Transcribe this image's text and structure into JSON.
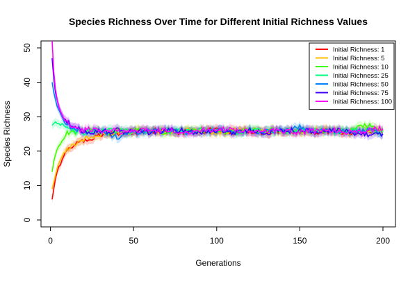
{
  "chart_data": {
    "type": "line",
    "title": "Species Richness Over Time for Different Initial Richness Values",
    "xlabel": "Generations",
    "ylabel": "Species Richness",
    "xlim": [
      1,
      200
    ],
    "ylim": [
      0,
      50
    ],
    "xticks": [
      0,
      50,
      100,
      150,
      200
    ],
    "yticks": [
      0,
      10,
      20,
      30,
      40,
      50
    ],
    "grid": false,
    "legend": "top-right",
    "confidence_bands": true,
    "x": [
      1,
      2,
      3,
      4,
      5,
      6,
      7,
      8,
      9,
      10,
      12,
      14,
      16,
      18,
      20,
      25,
      30,
      35,
      40,
      45,
      50,
      60,
      70,
      80,
      90,
      100,
      110,
      120,
      130,
      140,
      150,
      160,
      170,
      180,
      190,
      200
    ],
    "series": [
      {
        "name": "Initial Richness: 1",
        "color": "#ff0000",
        "values": [
          6,
          9,
          12,
          14,
          15.5,
          16,
          17.5,
          18.5,
          19,
          20,
          21,
          21.5,
          22,
          22.5,
          23,
          23.5,
          24.5,
          25,
          25,
          25.5,
          25.5,
          26,
          26,
          25.5,
          26,
          26,
          25.5,
          26,
          25.5,
          26,
          26,
          25.5,
          26,
          25.5,
          26,
          26
        ]
      },
      {
        "name": "Initial Richness: 5",
        "color": "#ffbf00",
        "values": [
          9,
          11,
          13,
          15,
          16.5,
          17.5,
          18.5,
          19.5,
          20,
          20.5,
          21.5,
          22,
          22.5,
          23,
          23.5,
          24,
          24.5,
          25,
          25.5,
          25.5,
          26,
          26,
          25.5,
          26,
          26,
          25.5,
          26,
          26,
          25.5,
          26,
          25.5,
          26,
          26,
          25.5,
          26,
          26
        ]
      },
      {
        "name": "Initial Richness: 10",
        "color": "#40ff00",
        "values": [
          14,
          17,
          19,
          20.5,
          21.5,
          22,
          23,
          23.5,
          24.5,
          25,
          25.5,
          25,
          25.5,
          26,
          25.5,
          26,
          26,
          25.5,
          26,
          25.5,
          26,
          26,
          25.5,
          26,
          26,
          26,
          25.5,
          26,
          26,
          26,
          25.5,
          26,
          26,
          26,
          27.5,
          26
        ]
      },
      {
        "name": "Initial Richness: 25",
        "color": "#00ff80",
        "values": [
          27.5,
          28,
          28.5,
          28,
          28,
          27.5,
          28,
          27.5,
          27,
          26.5,
          26,
          26,
          25.5,
          26,
          25.5,
          26,
          25.5,
          26,
          25.5,
          26,
          25.5,
          26,
          26,
          25.5,
          26,
          26,
          25.5,
          26,
          26,
          25.5,
          26,
          26,
          25.5,
          26,
          26,
          25.5
        ]
      },
      {
        "name": "Initial Richness: 50",
        "color": "#0080ff",
        "values": [
          40,
          37,
          35,
          33,
          32,
          31,
          30,
          29,
          28.5,
          28,
          27,
          26.5,
          26,
          26,
          25.5,
          26,
          25.5,
          25,
          24,
          25,
          25.5,
          26,
          26,
          25.5,
          26,
          26,
          25.5,
          26,
          25.5,
          26,
          27,
          25.5,
          26,
          25.5,
          26,
          25
        ]
      },
      {
        "name": "Initial Richness: 75",
        "color": "#4000ff",
        "values": [
          47,
          41,
          37,
          35,
          33,
          31.5,
          30.5,
          29.5,
          29,
          28.5,
          27.5,
          27,
          26.5,
          26,
          26,
          25.5,
          26,
          25.5,
          26,
          25.5,
          26,
          25.5,
          26,
          26,
          25.5,
          26,
          25.5,
          26,
          25.5,
          26,
          26,
          25.5,
          26,
          25.5,
          25,
          25
        ]
      },
      {
        "name": "Initial Richness: 100",
        "color": "#ff00ff",
        "values": [
          52,
          43,
          38,
          35,
          33,
          31.5,
          30.5,
          29.5,
          29,
          28.5,
          27.5,
          27,
          26.5,
          26,
          26,
          26.5,
          26,
          25.5,
          26,
          25.5,
          26,
          26,
          26,
          25.5,
          26,
          26.5,
          26,
          25.5,
          26,
          26,
          25.5,
          26,
          26,
          25.5,
          26,
          26.5
        ]
      }
    ]
  }
}
